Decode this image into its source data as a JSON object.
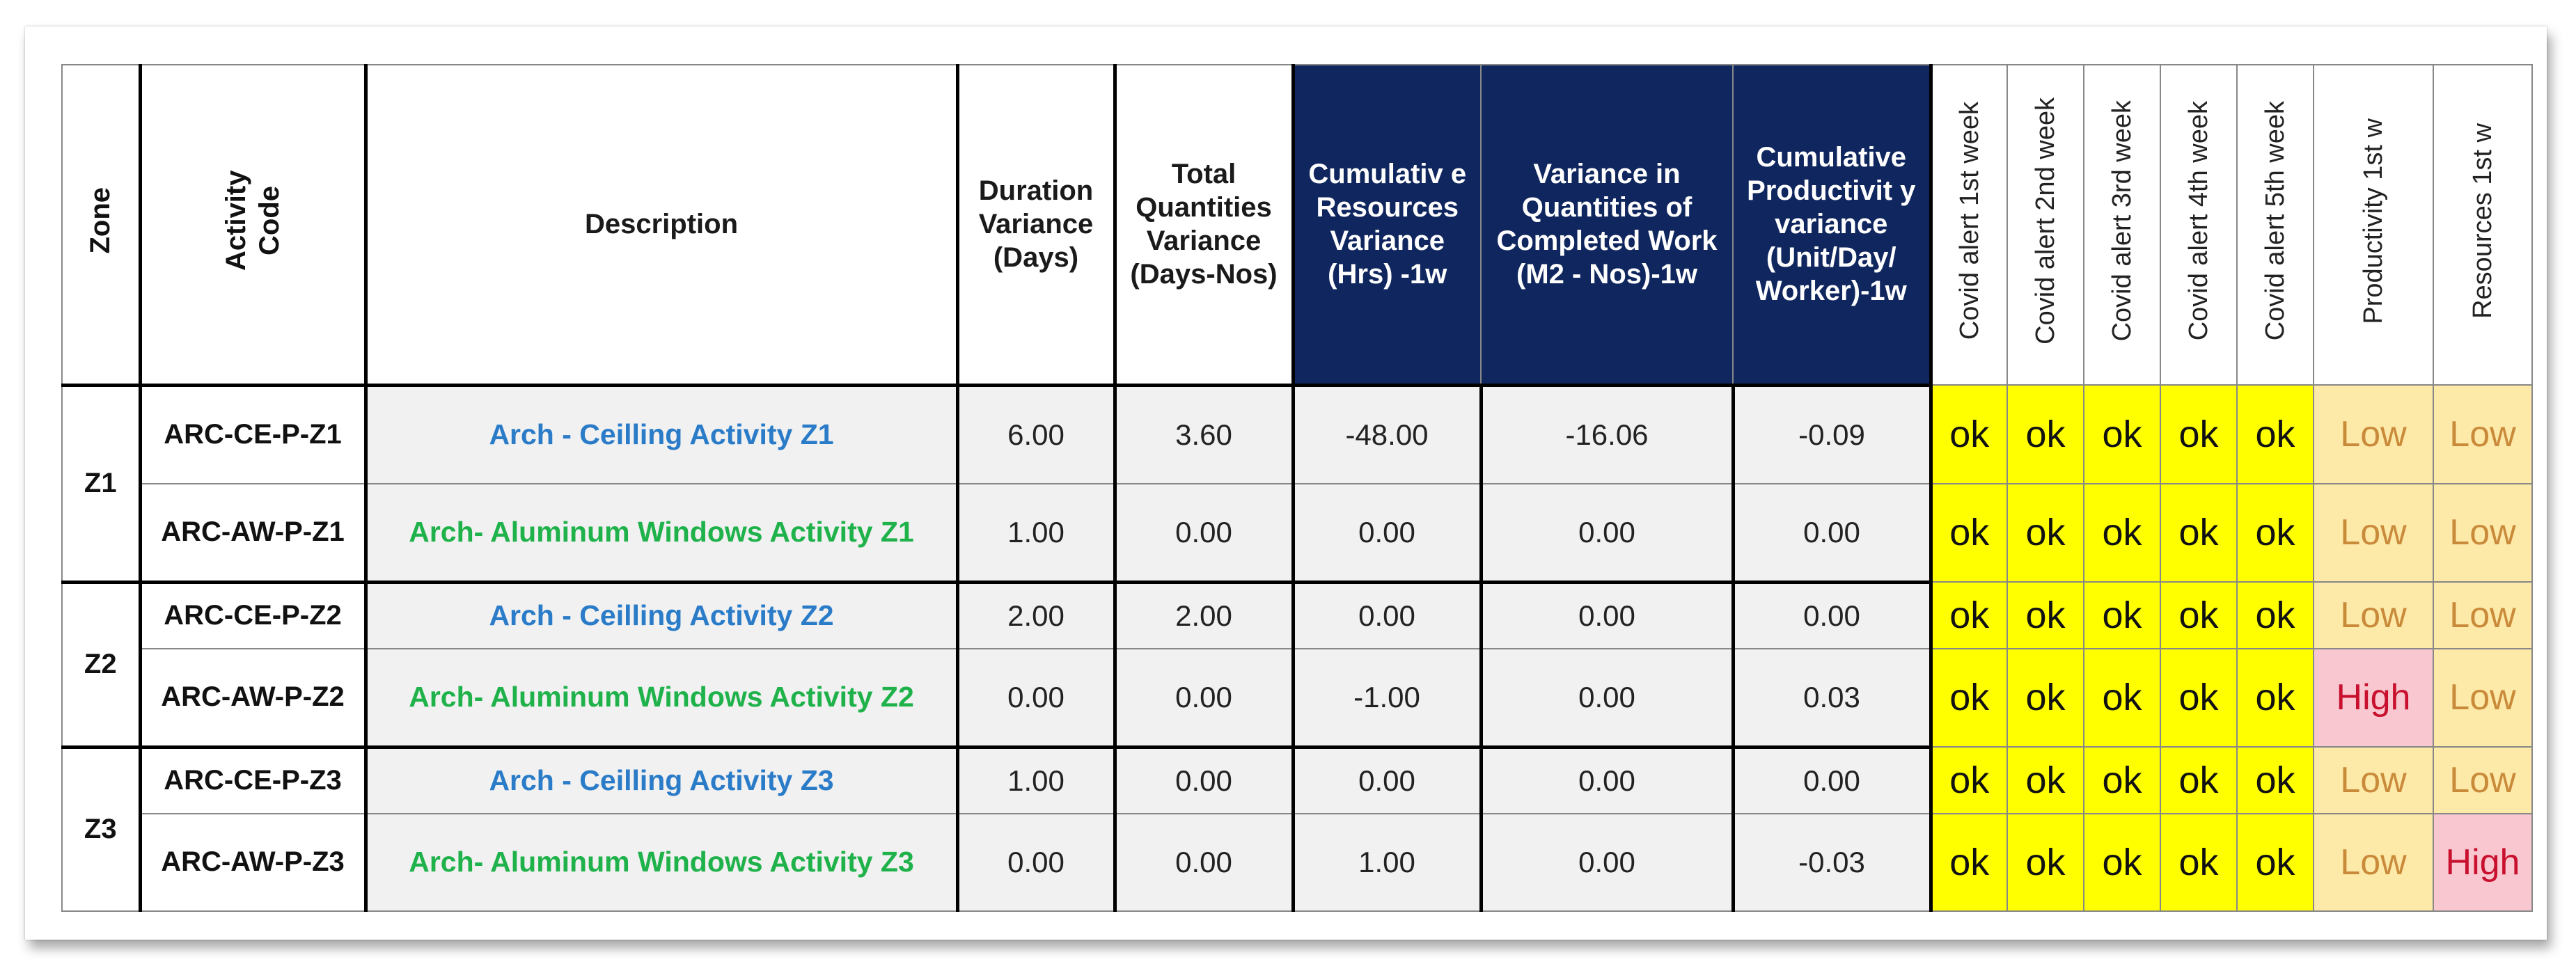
{
  "headers": {
    "zone": "Zone",
    "activity_code": "Activity Code",
    "description": "Description",
    "duration_variance": "Duration Variance (Days)",
    "total_quantities_variance": "Total Quantities Variance (Days-Nos)",
    "cumulative_resources_variance": "Cumulativ e Resources Variance (Hrs) -1w",
    "variance_quantities_completed": "Variance in Quantities of Completed Work (M2 - Nos)-1w",
    "cumulative_productivity_variance": "Cumulative Productivit y variance (Unit/Day/ Worker)-1w",
    "covid_alert_1": "Covid alert 1st week",
    "covid_alert_2": "Covid alert 2nd week",
    "covid_alert_3": "Covid alert 3rd week",
    "covid_alert_4": "Covid alert 4th week",
    "covid_alert_5": "Covid alert 5th week",
    "productivity_1w": "Productivity 1st w",
    "resources_1w": "Resources 1st w"
  },
  "colors": {
    "header_navy": "#10265e",
    "ok_yellow": "#ffff00",
    "low_fill": "#fde9a8",
    "low_text": "#c98a3a",
    "high_fill": "#f8c7cf",
    "high_text": "#c8102e",
    "ceiling_blue": "#2a7bc8",
    "windows_green": "#1fb24a"
  },
  "zones": [
    "Z1",
    "Z2",
    "Z3"
  ],
  "rows": [
    {
      "zone": "Z1",
      "code": "ARC-CE-P-Z1",
      "description": "Arch - Ceilling Activity Z1",
      "duration": "6.00",
      "total_qty": "3.60",
      "cum_res": "-48.00",
      "var_qty": "-16.06",
      "cum_prod": "-0.09",
      "covid": [
        "ok",
        "ok",
        "ok",
        "ok",
        "ok"
      ],
      "productivity": "Low",
      "resources": "Low"
    },
    {
      "zone": "Z1",
      "code": "ARC-AW-P-Z1",
      "description": "Arch- Aluminum Windows Activity Z1",
      "duration": "1.00",
      "total_qty": "0.00",
      "cum_res": "0.00",
      "var_qty": "0.00",
      "cum_prod": "0.00",
      "covid": [
        "ok",
        "ok",
        "ok",
        "ok",
        "ok"
      ],
      "productivity": "Low",
      "resources": "Low"
    },
    {
      "zone": "Z2",
      "code": "ARC-CE-P-Z2",
      "description": "Arch - Ceilling Activity Z2",
      "duration": "2.00",
      "total_qty": "2.00",
      "cum_res": "0.00",
      "var_qty": "0.00",
      "cum_prod": "0.00",
      "covid": [
        "ok",
        "ok",
        "ok",
        "ok",
        "ok"
      ],
      "productivity": "Low",
      "resources": "Low"
    },
    {
      "zone": "Z2",
      "code": "ARC-AW-P-Z2",
      "description": "Arch- Aluminum Windows Activity Z2",
      "duration": "0.00",
      "total_qty": "0.00",
      "cum_res": "-1.00",
      "var_qty": "0.00",
      "cum_prod": "0.03",
      "covid": [
        "ok",
        "ok",
        "ok",
        "ok",
        "ok"
      ],
      "productivity": "High",
      "resources": "Low"
    },
    {
      "zone": "Z3",
      "code": "ARC-CE-P-Z3",
      "description": "Arch - Ceilling Activity Z3",
      "duration": "1.00",
      "total_qty": "0.00",
      "cum_res": "0.00",
      "var_qty": "0.00",
      "cum_prod": "0.00",
      "covid": [
        "ok",
        "ok",
        "ok",
        "ok",
        "ok"
      ],
      "productivity": "Low",
      "resources": "Low"
    },
    {
      "zone": "Z3",
      "code": "ARC-AW-P-Z3",
      "description": "Arch- Aluminum Windows Activity Z3",
      "duration": "0.00",
      "total_qty": "0.00",
      "cum_res": "1.00",
      "var_qty": "0.00",
      "cum_prod": "-0.03",
      "covid": [
        "ok",
        "ok",
        "ok",
        "ok",
        "ok"
      ],
      "productivity": "Low",
      "resources": "High"
    }
  ]
}
